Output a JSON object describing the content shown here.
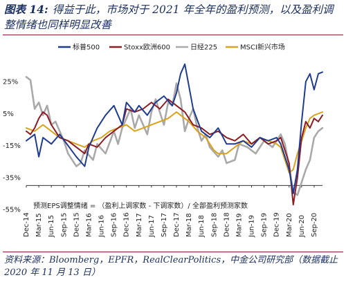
{
  "header": {
    "figure_label": "图表 14:",
    "title": "得益于此，市场对于 2021 年全年的盈利预测，以及盈利调整情绪也同样明显改善"
  },
  "footer": {
    "source": "资料来源：Bloomberg，EPFR，RealClearPolitics，中金公司研究部（数据截止 2020 年 11 月 13 日）"
  },
  "chart_data": {
    "type": "line",
    "title": "",
    "xlabel": "",
    "ylabel": "",
    "annotation": "预测EPS调整情绪 = （盈利上调家数 - 下调家数）/ 全部盈利预测家数",
    "ylim": [
      -55,
      45
    ],
    "y_ticks": [
      25,
      5,
      -15,
      -35,
      -55
    ],
    "y_tick_labels": [
      "25%",
      "5%",
      "-15%",
      "-35%",
      "-55%"
    ],
    "x_range": [
      "2014-12",
      "2020-11"
    ],
    "x_ticks": [
      "2014-12",
      "2015-03",
      "2015-06",
      "2015-09",
      "2015-12",
      "2016-03",
      "2016-06",
      "2016-09",
      "2016-12",
      "2017-03",
      "2017-06",
      "2017-09",
      "2017-12",
      "2018-03",
      "2018-06",
      "2018-09",
      "2018-12",
      "2019-03",
      "2019-06",
      "2019-09",
      "2019-12",
      "2020-03",
      "2020-06",
      "2020-09"
    ],
    "x_tick_labels": [
      "Dec-14",
      "Mar-15",
      "Jun-15",
      "Sep-15",
      "Dec-15",
      "Mar-16",
      "Jun-16",
      "Sep-16",
      "Dec-16",
      "Mar-17",
      "Jun-17",
      "Sep-17",
      "Dec-17",
      "Mar-18",
      "Jun-18",
      "Sep-18",
      "Dec-18",
      "Mar-19",
      "Jun-19",
      "Sep-19",
      "Dec-19",
      "Mar-20",
      "Jun-20",
      "Sep-20"
    ],
    "legend_position": "top",
    "grid": false,
    "series": [
      {
        "name": "标普500",
        "color": "#1f3b8f",
        "width": 2,
        "points": [
          [
            "2014-12",
            -12
          ],
          [
            "2015-02",
            -8
          ],
          [
            "2015-03",
            -22
          ],
          [
            "2015-04",
            -10
          ],
          [
            "2015-06",
            -14
          ],
          [
            "2015-08",
            -8
          ],
          [
            "2015-10",
            -15
          ],
          [
            "2015-12",
            -22
          ],
          [
            "2016-02",
            -28
          ],
          [
            "2016-03",
            -16
          ],
          [
            "2016-05",
            -4
          ],
          [
            "2016-07",
            4
          ],
          [
            "2016-09",
            10
          ],
          [
            "2016-11",
            -2
          ],
          [
            "2016-12",
            12
          ],
          [
            "2017-02",
            6
          ],
          [
            "2017-03",
            10
          ],
          [
            "2017-05",
            4
          ],
          [
            "2017-07",
            12
          ],
          [
            "2017-09",
            16
          ],
          [
            "2017-11",
            10
          ],
          [
            "2017-12",
            18
          ],
          [
            "2018-01",
            30
          ],
          [
            "2018-02",
            36
          ],
          [
            "2018-03",
            22
          ],
          [
            "2018-04",
            8
          ],
          [
            "2018-06",
            -6
          ],
          [
            "2018-08",
            -10
          ],
          [
            "2018-10",
            -4
          ],
          [
            "2018-12",
            -14
          ],
          [
            "2019-02",
            -14
          ],
          [
            "2019-04",
            -12
          ],
          [
            "2019-06",
            -16
          ],
          [
            "2019-08",
            -10
          ],
          [
            "2019-10",
            -12
          ],
          [
            "2019-12",
            -10
          ],
          [
            "2020-01",
            -14
          ],
          [
            "2020-03",
            -30
          ],
          [
            "2020-04",
            -45
          ],
          [
            "2020-05",
            -30
          ],
          [
            "2020-06",
            0
          ],
          [
            "2020-07",
            25
          ],
          [
            "2020-08",
            30
          ],
          [
            "2020-09",
            20
          ],
          [
            "2020-10",
            30
          ],
          [
            "2020-11",
            31
          ]
        ]
      },
      {
        "name": "Stoxx欧洲600",
        "color": "#8b1c24",
        "width": 2,
        "points": [
          [
            "2014-12",
            -6
          ],
          [
            "2015-01",
            -8
          ],
          [
            "2015-02",
            -4
          ],
          [
            "2015-03",
            2
          ],
          [
            "2015-04",
            6
          ],
          [
            "2015-05",
            4
          ],
          [
            "2015-06",
            -2
          ],
          [
            "2015-08",
            -10
          ],
          [
            "2015-10",
            -12
          ],
          [
            "2015-12",
            -16
          ],
          [
            "2016-02",
            -20
          ],
          [
            "2016-03",
            -14
          ],
          [
            "2016-05",
            -16
          ],
          [
            "2016-07",
            -10
          ],
          [
            "2016-09",
            -6
          ],
          [
            "2016-11",
            -2
          ],
          [
            "2016-12",
            8
          ],
          [
            "2017-02",
            6
          ],
          [
            "2017-04",
            8
          ],
          [
            "2017-06",
            12
          ],
          [
            "2017-08",
            8
          ],
          [
            "2017-10",
            14
          ],
          [
            "2017-12",
            10
          ],
          [
            "2018-02",
            6
          ],
          [
            "2018-04",
            -2
          ],
          [
            "2018-06",
            -4
          ],
          [
            "2018-08",
            -8
          ],
          [
            "2018-10",
            -6
          ],
          [
            "2018-12",
            -10
          ],
          [
            "2019-02",
            -12
          ],
          [
            "2019-04",
            -8
          ],
          [
            "2019-06",
            -14
          ],
          [
            "2019-08",
            -10
          ],
          [
            "2019-10",
            -14
          ],
          [
            "2019-12",
            -12
          ],
          [
            "2020-01",
            -10
          ],
          [
            "2020-03",
            -26
          ],
          [
            "2020-04",
            -52
          ],
          [
            "2020-05",
            -35
          ],
          [
            "2020-06",
            -10
          ],
          [
            "2020-07",
            0
          ],
          [
            "2020-08",
            -4
          ],
          [
            "2020-09",
            2
          ],
          [
            "2020-10",
            0
          ],
          [
            "2020-11",
            4
          ]
        ]
      },
      {
        "name": "日经225",
        "color": "#a9a9a9",
        "width": 2.6,
        "points": [
          [
            "2014-12",
            28
          ],
          [
            "2015-01",
            26
          ],
          [
            "2015-02",
            8
          ],
          [
            "2015-03",
            12
          ],
          [
            "2015-04",
            4
          ],
          [
            "2015-05",
            10
          ],
          [
            "2015-06",
            -2
          ],
          [
            "2015-07",
            0
          ],
          [
            "2015-09",
            -12
          ],
          [
            "2015-10",
            -20
          ],
          [
            "2015-12",
            -28
          ],
          [
            "2016-01",
            -26
          ],
          [
            "2016-02",
            -18
          ],
          [
            "2016-04",
            -24
          ],
          [
            "2016-05",
            -14
          ],
          [
            "2016-07",
            -20
          ],
          [
            "2016-09",
            -6
          ],
          [
            "2016-10",
            -14
          ],
          [
            "2016-11",
            -4
          ],
          [
            "2016-12",
            2
          ],
          [
            "2017-01",
            8
          ],
          [
            "2017-02",
            -4
          ],
          [
            "2017-03",
            4
          ],
          [
            "2017-05",
            -8
          ],
          [
            "2017-06",
            6
          ],
          [
            "2017-07",
            14
          ],
          [
            "2017-08",
            6
          ],
          [
            "2017-09",
            -2
          ],
          [
            "2017-10",
            12
          ],
          [
            "2017-11",
            10
          ],
          [
            "2017-12",
            24
          ],
          [
            "2018-01",
            14
          ],
          [
            "2018-02",
            -6
          ],
          [
            "2018-03",
            2
          ],
          [
            "2018-04",
            8
          ],
          [
            "2018-05",
            -4
          ],
          [
            "2018-06",
            -12
          ],
          [
            "2018-07",
            -8
          ],
          [
            "2018-08",
            -16
          ],
          [
            "2018-10",
            -22
          ],
          [
            "2018-11",
            -18
          ],
          [
            "2018-12",
            -26
          ],
          [
            "2019-02",
            -24
          ],
          [
            "2019-03",
            -14
          ],
          [
            "2019-05",
            -16
          ],
          [
            "2019-07",
            -20
          ],
          [
            "2019-09",
            -12
          ],
          [
            "2019-11",
            -16
          ],
          [
            "2019-12",
            -12
          ],
          [
            "2020-01",
            -8
          ],
          [
            "2020-02",
            -14
          ],
          [
            "2020-03",
            -28
          ],
          [
            "2020-04",
            -44
          ],
          [
            "2020-05",
            -46
          ],
          [
            "2020-06",
            -38
          ],
          [
            "2020-07",
            -30
          ],
          [
            "2020-08",
            -24
          ],
          [
            "2020-09",
            -10
          ],
          [
            "2020-10",
            -6
          ],
          [
            "2020-11",
            -4
          ]
        ]
      },
      {
        "name": "MSCI新兴市场",
        "color": "#d9a21b",
        "width": 2,
        "points": [
          [
            "2014-12",
            -4
          ],
          [
            "2015-02",
            -6
          ],
          [
            "2015-04",
            -2
          ],
          [
            "2015-06",
            -6
          ],
          [
            "2015-08",
            -10
          ],
          [
            "2015-10",
            -12
          ],
          [
            "2015-12",
            -14
          ],
          [
            "2016-02",
            -16
          ],
          [
            "2016-04",
            -12
          ],
          [
            "2016-06",
            -10
          ],
          [
            "2016-08",
            -6
          ],
          [
            "2016-10",
            -4
          ],
          [
            "2016-12",
            -2
          ],
          [
            "2017-02",
            -6
          ],
          [
            "2017-04",
            -4
          ],
          [
            "2017-06",
            -2
          ],
          [
            "2017-08",
            0
          ],
          [
            "2017-10",
            2
          ],
          [
            "2017-11",
            4
          ],
          [
            "2017-12",
            6
          ],
          [
            "2018-01",
            4
          ],
          [
            "2018-03",
            0
          ],
          [
            "2018-05",
            -6
          ],
          [
            "2018-07",
            -10
          ],
          [
            "2018-08",
            -14
          ],
          [
            "2018-09",
            -18
          ],
          [
            "2018-10",
            -20
          ],
          [
            "2018-12",
            -20
          ],
          [
            "2019-02",
            -16
          ],
          [
            "2019-04",
            -12
          ],
          [
            "2019-06",
            -14
          ],
          [
            "2019-08",
            -10
          ],
          [
            "2019-10",
            -12
          ],
          [
            "2019-12",
            -14
          ],
          [
            "2020-01",
            -16
          ],
          [
            "2020-02",
            -24
          ],
          [
            "2020-03",
            -32
          ],
          [
            "2020-04",
            -30
          ],
          [
            "2020-05",
            -20
          ],
          [
            "2020-06",
            -12
          ],
          [
            "2020-07",
            -4
          ],
          [
            "2020-08",
            2
          ],
          [
            "2020-09",
            4
          ],
          [
            "2020-10",
            5
          ],
          [
            "2020-11",
            6
          ]
        ]
      }
    ]
  }
}
